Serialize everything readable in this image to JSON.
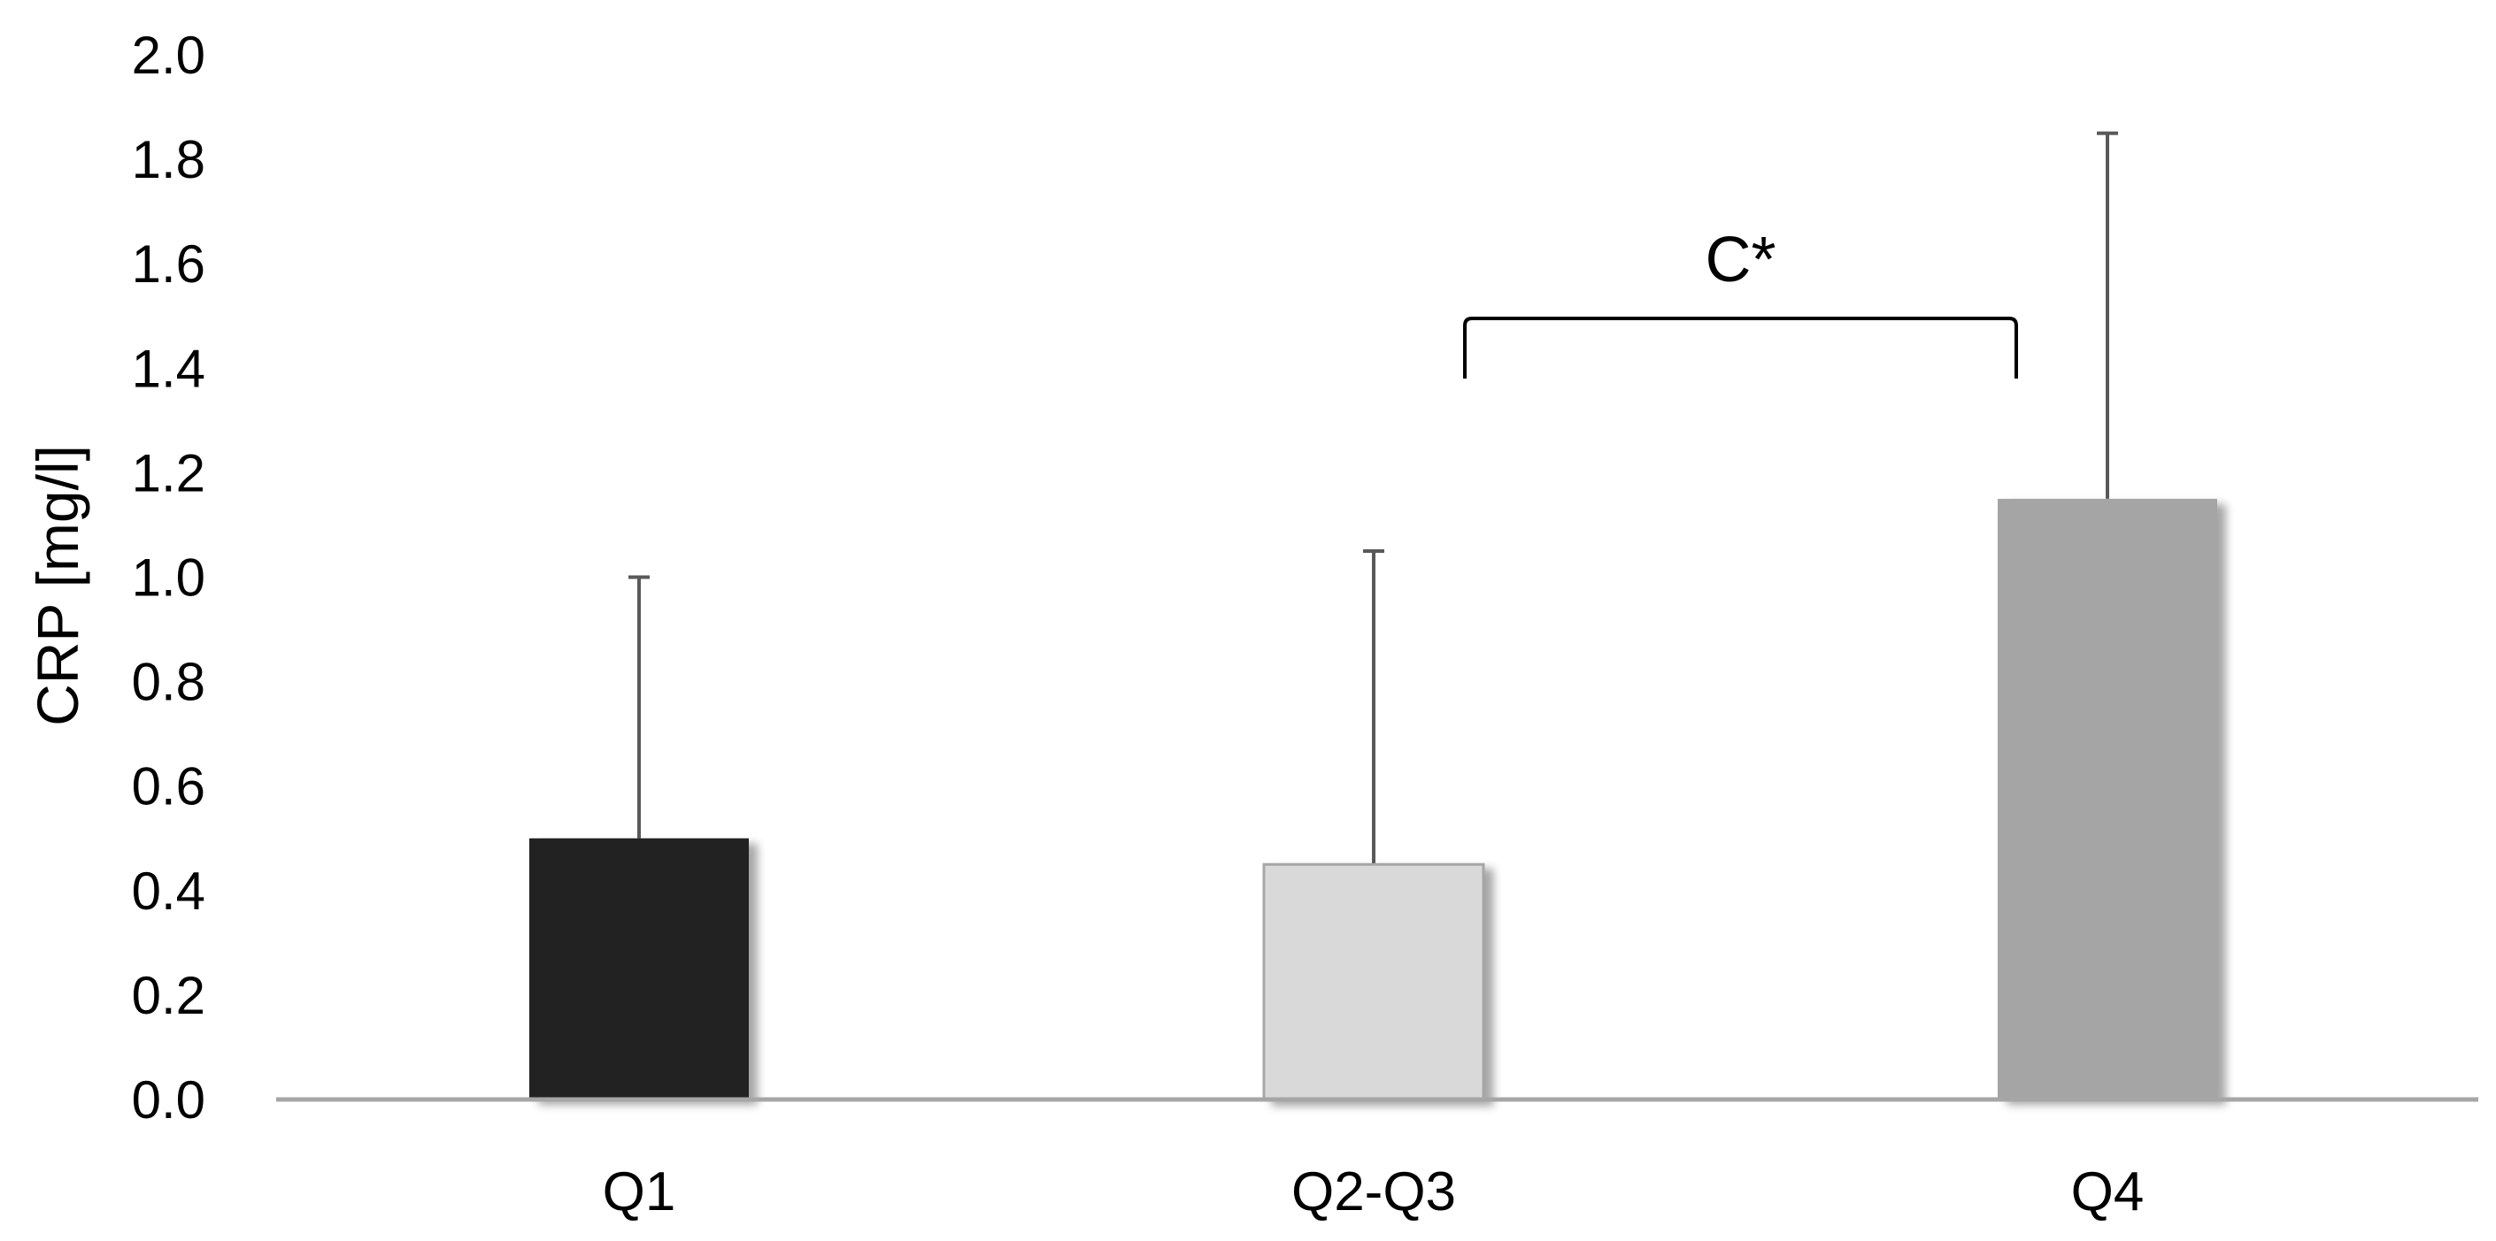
{
  "chart_data": {
    "type": "bar",
    "title": "",
    "xlabel": "",
    "ylabel": "CRP  [mg/l]",
    "ylim": [
      0,
      2.0
    ],
    "yticks": [
      "0.0",
      "0.2",
      "0.4",
      "0.6",
      "0.8",
      "1.0",
      "1.2",
      "1.4",
      "1.6",
      "1.8",
      "2.0"
    ],
    "grid": false,
    "legend": "none",
    "categories": [
      "Q1",
      "Q2-Q3",
      "Q4"
    ],
    "values": [
      0.5,
      0.45,
      1.15
    ],
    "error_upper": [
      1.0,
      1.05,
      1.85
    ],
    "colors": [
      "#222222",
      "#d9d9d9",
      "#a5a5a5"
    ],
    "annotations": [
      {
        "text": "C*",
        "from_category": "Q2-Q3",
        "to_category": "Q4"
      }
    ]
  }
}
